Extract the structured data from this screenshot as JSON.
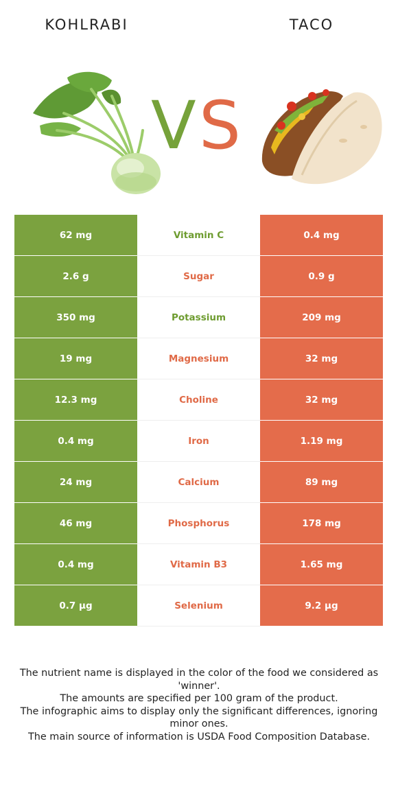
{
  "header": {
    "left_food": "KOHLRABI",
    "right_food": "TACO",
    "vs_v": "V",
    "vs_s": "S"
  },
  "colors": {
    "left_accent": "#7ba23f",
    "right_accent": "#e46c4b"
  },
  "nutrients": [
    {
      "left": "62 mg",
      "name": "Vitamin C",
      "right": "0.4 mg",
      "winner": "left"
    },
    {
      "left": "2.6 g",
      "name": "Sugar",
      "right": "0.9 g",
      "winner": "right"
    },
    {
      "left": "350 mg",
      "name": "Potassium",
      "right": "209 mg",
      "winner": "left"
    },
    {
      "left": "19 mg",
      "name": "Magnesium",
      "right": "32 mg",
      "winner": "right"
    },
    {
      "left": "12.3 mg",
      "name": "Choline",
      "right": "32 mg",
      "winner": "right"
    },
    {
      "left": "0.4 mg",
      "name": "Iron",
      "right": "1.19 mg",
      "winner": "right"
    },
    {
      "left": "24 mg",
      "name": "Calcium",
      "right": "89 mg",
      "winner": "right"
    },
    {
      "left": "46 mg",
      "name": "Phosphorus",
      "right": "178 mg",
      "winner": "right"
    },
    {
      "left": "0.4 mg",
      "name": "Vitamin B3",
      "right": "1.65 mg",
      "winner": "right"
    },
    {
      "left": "0.7 µg",
      "name": "Selenium",
      "right": "9.2 µg",
      "winner": "right"
    }
  ],
  "footnote": {
    "line1": "The nutrient name is displayed in the color of the food we considered as 'winner'.",
    "line2": "The amounts are specified per 100 gram of the product.",
    "line3": "The infographic aims to display only the significant differences, ignoring minor ones.",
    "line4": "The main source of information is USDA Food Composition Database."
  }
}
